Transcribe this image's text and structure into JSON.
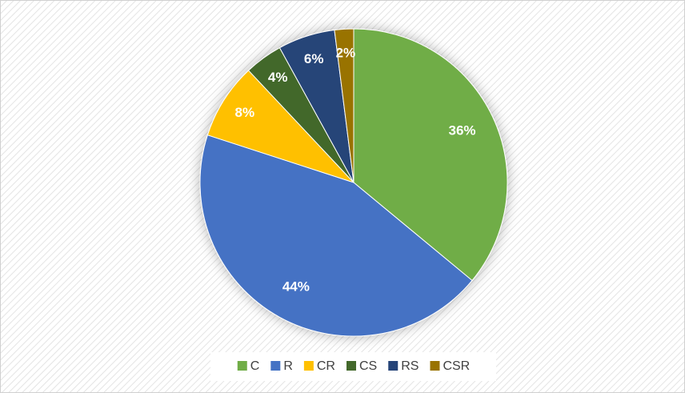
{
  "chart_data": {
    "type": "pie",
    "categories": [
      "C",
      "R",
      "CR",
      "CS",
      "RS",
      "CSR"
    ],
    "values": [
      36,
      44,
      8,
      4,
      6,
      2
    ],
    "value_labels": [
      "36%",
      "44%",
      "8%",
      "4%",
      "6%",
      "2%"
    ],
    "colors": [
      "#70ad47",
      "#4472c4",
      "#ffc000",
      "#43682b",
      "#264478",
      "#997300"
    ],
    "legend": "bottom"
  }
}
